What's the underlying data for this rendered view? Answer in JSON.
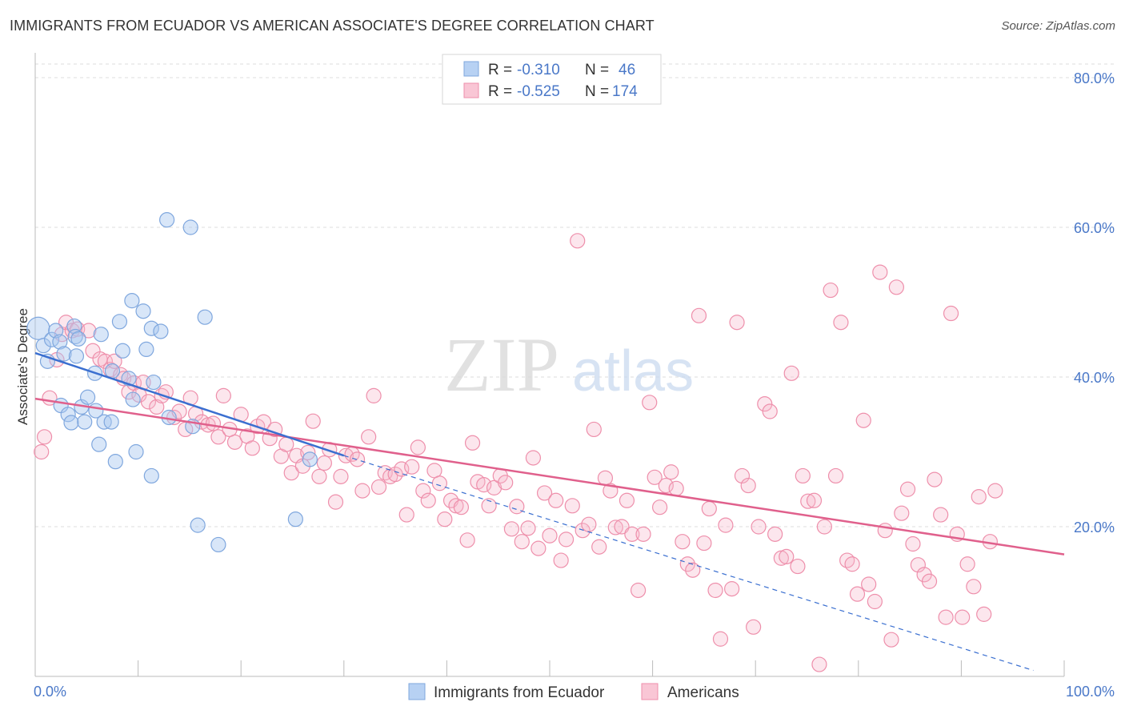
{
  "header": {
    "title": "IMMIGRANTS FROM ECUADOR VS AMERICAN ASSOCIATE'S DEGREE CORRELATION CHART",
    "source": "Source: ZipAtlas.com"
  },
  "watermark": {
    "zip": "ZIP",
    "atlas": "atlas"
  },
  "legend_top": {
    "rows": [
      {
        "r_label": "R =",
        "r_value": "-0.310",
        "n_label": "N =",
        "n_value": "46"
      },
      {
        "r_label": "R =",
        "r_value": "-0.525",
        "n_label": "N =",
        "n_value": "174"
      }
    ]
  },
  "legend_bottom": {
    "items": [
      {
        "label": "Immigrants from Ecuador"
      },
      {
        "label": "Americans"
      }
    ]
  },
  "colors": {
    "blue_fill": "#a9c8f0",
    "blue_stroke": "#7fa7de",
    "blue_line": "#3a6fd0",
    "pink_fill": "#f7b8cb",
    "pink_stroke": "#ee8fab",
    "pink_line": "#e0608c",
    "grid": "#dddddd",
    "axis_text": "#4a78c8"
  },
  "chart_data": {
    "type": "scatter",
    "title": "IMMIGRANTS FROM ECUADOR VS AMERICAN ASSOCIATE'S DEGREE CORRELATION CHART",
    "xlabel": "",
    "ylabel": "Associate's Degree",
    "xlim": [
      0,
      100
    ],
    "ylim": [
      0,
      80
    ],
    "y_ticks": [
      "20.0%",
      "40.0%",
      "60.0%",
      "80.0%"
    ],
    "x_ticks": [
      "0.0%",
      "100.0%"
    ],
    "grid": true,
    "legend_placement": "bottom",
    "series": [
      {
        "name": "Immigrants from Ecuador",
        "r": -0.31,
        "n": 46,
        "trend": {
          "x0": 0,
          "y0": 43.2,
          "x1": 30,
          "y1": 29.5,
          "dashed_to_x": 97,
          "dashed_to_y": 0.8
        },
        "points": [
          [
            0.3,
            46.5
          ],
          [
            0.8,
            44.2
          ],
          [
            1.2,
            42.1
          ],
          [
            1.6,
            45.0
          ],
          [
            2.0,
            46.2
          ],
          [
            2.4,
            44.7
          ],
          [
            2.8,
            43.1
          ],
          [
            3.8,
            46.8
          ],
          [
            3.9,
            45.4
          ],
          [
            4.2,
            45.1
          ],
          [
            4.0,
            42.8
          ],
          [
            6.4,
            45.7
          ],
          [
            8.2,
            47.4
          ],
          [
            9.4,
            50.2
          ],
          [
            10.5,
            48.8
          ],
          [
            11.3,
            46.5
          ],
          [
            12.2,
            46.1
          ],
          [
            10.8,
            43.7
          ],
          [
            8.5,
            43.5
          ],
          [
            5.8,
            40.5
          ],
          [
            7.5,
            40.8
          ],
          [
            9.1,
            39.8
          ],
          [
            11.5,
            39.3
          ],
          [
            2.5,
            36.2
          ],
          [
            3.2,
            35.0
          ],
          [
            3.5,
            33.9
          ],
          [
            4.5,
            36.0
          ],
          [
            5.1,
            37.3
          ],
          [
            5.9,
            35.5
          ],
          [
            4.8,
            34.0
          ],
          [
            6.7,
            34.0
          ],
          [
            7.4,
            34.0
          ],
          [
            9.5,
            37.0
          ],
          [
            13.0,
            34.6
          ],
          [
            15.3,
            33.4
          ],
          [
            6.2,
            31.0
          ],
          [
            7.8,
            28.7
          ],
          [
            9.8,
            30.0
          ],
          [
            11.3,
            26.8
          ],
          [
            15.8,
            20.2
          ],
          [
            17.8,
            17.6
          ],
          [
            25.3,
            21.0
          ],
          [
            26.7,
            29.0
          ],
          [
            12.8,
            61.0
          ],
          [
            15.1,
            60.0
          ],
          [
            16.5,
            48.0
          ]
        ]
      },
      {
        "name": "Americans",
        "r": -0.525,
        "n": 174,
        "trend": {
          "x0": 0,
          "y0": 37.1,
          "x1": 100,
          "y1": 16.3
        },
        "points": [
          [
            0.6,
            30.0
          ],
          [
            0.9,
            32.0
          ],
          [
            1.4,
            37.2
          ],
          [
            2.1,
            42.3
          ],
          [
            2.6,
            45.7
          ],
          [
            3.0,
            47.3
          ],
          [
            3.6,
            46.2
          ],
          [
            4.1,
            46.4
          ],
          [
            5.2,
            46.2
          ],
          [
            5.6,
            43.5
          ],
          [
            6.3,
            42.4
          ],
          [
            6.8,
            42.1
          ],
          [
            7.3,
            41.0
          ],
          [
            7.7,
            42.1
          ],
          [
            8.3,
            40.3
          ],
          [
            8.6,
            39.8
          ],
          [
            9.1,
            38.0
          ],
          [
            9.6,
            39.2
          ],
          [
            10.1,
            37.6
          ],
          [
            10.5,
            39.3
          ],
          [
            11.0,
            36.7
          ],
          [
            11.8,
            36.0
          ],
          [
            12.3,
            37.5
          ],
          [
            12.7,
            38.0
          ],
          [
            13.5,
            34.6
          ],
          [
            14.0,
            35.4
          ],
          [
            14.6,
            33.0
          ],
          [
            15.1,
            37.2
          ],
          [
            15.6,
            35.1
          ],
          [
            16.2,
            34.0
          ],
          [
            16.8,
            33.6
          ],
          [
            17.3,
            33.8
          ],
          [
            17.8,
            32.0
          ],
          [
            18.3,
            37.5
          ],
          [
            18.9,
            33.0
          ],
          [
            19.4,
            31.3
          ],
          [
            20.0,
            35.0
          ],
          [
            20.6,
            32.1
          ],
          [
            21.1,
            30.5
          ],
          [
            21.6,
            33.4
          ],
          [
            22.2,
            34.0
          ],
          [
            22.8,
            31.8
          ],
          [
            23.3,
            33.0
          ],
          [
            23.9,
            29.4
          ],
          [
            24.4,
            31.0
          ],
          [
            24.9,
            27.2
          ],
          [
            25.4,
            29.5
          ],
          [
            26.0,
            28.1
          ],
          [
            26.5,
            29.9
          ],
          [
            27.0,
            34.1
          ],
          [
            27.6,
            26.7
          ],
          [
            28.1,
            28.5
          ],
          [
            28.6,
            30.3
          ],
          [
            29.2,
            23.3
          ],
          [
            29.7,
            26.7
          ],
          [
            30.2,
            29.5
          ],
          [
            30.8,
            29.7
          ],
          [
            31.3,
            29.0
          ],
          [
            31.8,
            24.8
          ],
          [
            32.4,
            32.0
          ],
          [
            32.9,
            37.5
          ],
          [
            33.4,
            25.3
          ],
          [
            34.0,
            27.2
          ],
          [
            34.5,
            26.7
          ],
          [
            35.0,
            27.0
          ],
          [
            35.6,
            27.7
          ],
          [
            36.1,
            21.6
          ],
          [
            36.6,
            28.0
          ],
          [
            37.2,
            30.6
          ],
          [
            37.7,
            24.8
          ],
          [
            38.2,
            23.5
          ],
          [
            38.8,
            27.5
          ],
          [
            39.3,
            25.8
          ],
          [
            39.8,
            21.0
          ],
          [
            40.4,
            23.5
          ],
          [
            40.9,
            22.8
          ],
          [
            41.4,
            22.6
          ],
          [
            42.0,
            18.2
          ],
          [
            42.5,
            31.2
          ],
          [
            43.0,
            26.0
          ],
          [
            43.6,
            25.6
          ],
          [
            44.1,
            22.8
          ],
          [
            44.6,
            25.2
          ],
          [
            45.2,
            26.8
          ],
          [
            45.7,
            25.9
          ],
          [
            46.3,
            19.7
          ],
          [
            46.8,
            22.7
          ],
          [
            47.3,
            18.0
          ],
          [
            47.9,
            19.8
          ],
          [
            48.4,
            29.2
          ],
          [
            48.9,
            17.1
          ],
          [
            49.5,
            24.5
          ],
          [
            50.0,
            18.8
          ],
          [
            50.6,
            23.5
          ],
          [
            51.1,
            15.5
          ],
          [
            51.6,
            18.3
          ],
          [
            52.2,
            22.8
          ],
          [
            52.7,
            58.2
          ],
          [
            53.2,
            19.5
          ],
          [
            53.8,
            20.3
          ],
          [
            54.3,
            33.0
          ],
          [
            54.8,
            17.3
          ],
          [
            55.4,
            26.5
          ],
          [
            55.9,
            24.8
          ],
          [
            56.4,
            19.9
          ],
          [
            57.0,
            20.0
          ],
          [
            57.5,
            23.5
          ],
          [
            58.0,
            19.0
          ],
          [
            58.6,
            11.5
          ],
          [
            59.1,
            19.0
          ],
          [
            59.7,
            36.6
          ],
          [
            60.2,
            26.6
          ],
          [
            60.7,
            22.6
          ],
          [
            61.3,
            25.5
          ],
          [
            61.8,
            27.3
          ],
          [
            62.3,
            25.1
          ],
          [
            62.9,
            18.0
          ],
          [
            63.4,
            15.0
          ],
          [
            63.9,
            14.2
          ],
          [
            64.5,
            48.2
          ],
          [
            65.0,
            17.8
          ],
          [
            65.5,
            22.4
          ],
          [
            66.1,
            11.5
          ],
          [
            66.6,
            5.0
          ],
          [
            67.1,
            20.2
          ],
          [
            67.7,
            11.7
          ],
          [
            68.2,
            47.3
          ],
          [
            68.7,
            26.8
          ],
          [
            69.3,
            25.5
          ],
          [
            69.8,
            6.6
          ],
          [
            70.3,
            20.0
          ],
          [
            70.9,
            36.4
          ],
          [
            71.4,
            35.4
          ],
          [
            71.9,
            19.0
          ],
          [
            72.5,
            15.8
          ],
          [
            73.0,
            16.0
          ],
          [
            73.5,
            40.5
          ],
          [
            74.1,
            14.7
          ],
          [
            74.6,
            26.8
          ],
          [
            75.1,
            23.4
          ],
          [
            75.7,
            23.5
          ],
          [
            76.2,
            1.6
          ],
          [
            76.7,
            20.0
          ],
          [
            77.3,
            51.6
          ],
          [
            77.8,
            26.8
          ],
          [
            78.3,
            47.3
          ],
          [
            78.9,
            15.5
          ],
          [
            79.4,
            15.0
          ],
          [
            79.9,
            11.0
          ],
          [
            80.5,
            34.2
          ],
          [
            81.0,
            12.3
          ],
          [
            81.6,
            10.0
          ],
          [
            82.1,
            54.0
          ],
          [
            82.6,
            19.5
          ],
          [
            83.2,
            4.9
          ],
          [
            83.7,
            52.0
          ],
          [
            84.2,
            21.8
          ],
          [
            84.8,
            25.0
          ],
          [
            85.3,
            17.7
          ],
          [
            85.8,
            14.9
          ],
          [
            86.4,
            13.6
          ],
          [
            86.9,
            12.7
          ],
          [
            87.4,
            26.3
          ],
          [
            88.0,
            21.6
          ],
          [
            88.5,
            7.9
          ],
          [
            89.0,
            48.5
          ],
          [
            89.6,
            19.0
          ],
          [
            90.1,
            7.9
          ],
          [
            90.6,
            15.0
          ],
          [
            91.2,
            12.0
          ],
          [
            91.7,
            24.0
          ],
          [
            92.2,
            8.3
          ],
          [
            92.8,
            18.0
          ],
          [
            93.3,
            24.8
          ]
        ]
      }
    ]
  }
}
